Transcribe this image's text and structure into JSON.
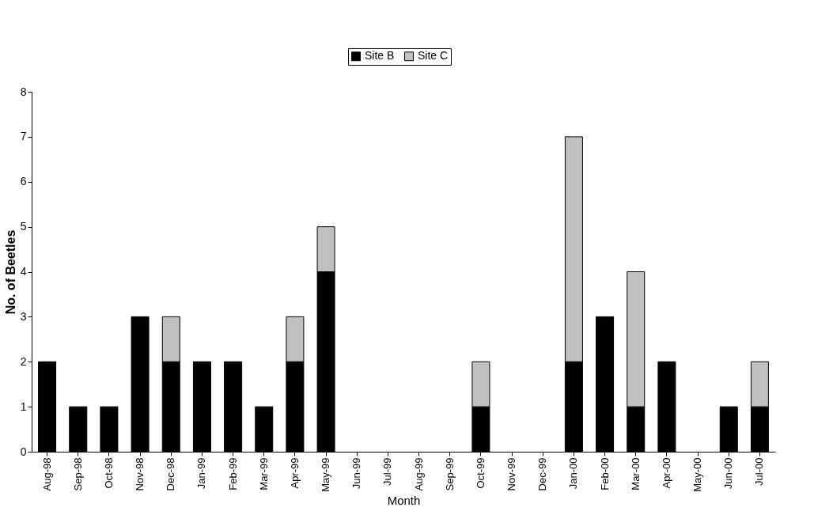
{
  "chart_data": {
    "type": "bar",
    "stacked": true,
    "xlabel": "Month",
    "ylabel": "No. of Beetles",
    "categories": [
      "Aug-98",
      "Sep-98",
      "Oct-98",
      "Nov-98",
      "Dec-98",
      "Jan-99",
      "Feb-99",
      "Mar-99",
      "Apr-99",
      "May-99",
      "Jun-99",
      "Jul-99",
      "Aug-99",
      "Sep-99",
      "Oct-99",
      "Nov-99",
      "Dec-99",
      "Jan-00",
      "Feb-00",
      "Mar-00",
      "Apr-00",
      "May-00",
      "Jun-00",
      "Jul-00"
    ],
    "series": [
      {
        "name": "Site B",
        "color": "#000000",
        "values": [
          2,
          1,
          1,
          3,
          2,
          2,
          2,
          1,
          2,
          4,
          0,
          0,
          0,
          0,
          1,
          0,
          0,
          2,
          3,
          1,
          2,
          0,
          1,
          1
        ]
      },
      {
        "name": "Site C",
        "color": "#c0c0c0",
        "values": [
          0,
          0,
          0,
          0,
          1,
          0,
          0,
          0,
          1,
          1,
          0,
          0,
          0,
          0,
          1,
          0,
          0,
          5,
          0,
          3,
          0,
          0,
          0,
          1
        ]
      }
    ],
    "ylim": [
      0,
      8
    ],
    "yticks": [
      0,
      1,
      2,
      3,
      4,
      5,
      6,
      7,
      8
    ],
    "grid": false,
    "legend": "top"
  }
}
